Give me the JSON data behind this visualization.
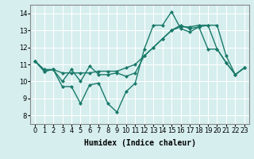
{
  "line1_x": [
    0,
    1,
    2,
    3,
    4,
    5,
    6,
    7,
    8,
    9,
    10,
    11,
    12,
    13,
    14,
    15,
    16,
    17,
    18,
    19,
    20,
    21,
    22,
    23
  ],
  "line1_y": [
    11.2,
    10.6,
    10.7,
    9.7,
    9.7,
    8.7,
    9.8,
    9.9,
    8.7,
    8.2,
    9.4,
    9.9,
    11.9,
    13.3,
    13.3,
    14.1,
    13.1,
    12.9,
    13.2,
    13.3,
    11.9,
    11.1,
    10.4,
    10.8
  ],
  "line2_x": [
    0,
    1,
    2,
    3,
    4,
    5,
    6,
    7,
    8,
    9,
    10,
    11,
    12,
    13,
    14,
    15,
    16,
    17,
    18,
    19,
    20,
    21,
    22,
    23
  ],
  "line2_y": [
    11.2,
    10.7,
    10.7,
    10.5,
    10.5,
    10.5,
    10.5,
    10.6,
    10.6,
    10.6,
    10.8,
    11.0,
    11.5,
    12.0,
    12.5,
    13.0,
    13.2,
    13.2,
    13.3,
    13.3,
    13.3,
    11.5,
    10.4,
    10.8
  ],
  "line3_x": [
    0,
    1,
    2,
    3,
    4,
    5,
    6,
    7,
    8,
    9,
    10,
    11,
    12,
    13,
    14,
    15,
    16,
    17,
    18,
    19,
    20,
    21,
    22,
    23
  ],
  "line3_y": [
    11.2,
    10.6,
    10.7,
    10.0,
    10.7,
    10.0,
    10.9,
    10.4,
    10.4,
    10.5,
    10.3,
    10.5,
    11.5,
    12.0,
    12.5,
    13.0,
    13.3,
    13.1,
    13.2,
    11.9,
    11.9,
    11.1,
    10.4,
    10.8
  ],
  "color": "#1a7a6a",
  "bg_color": "#d6eeee",
  "grid_color": "#ffffff",
  "xlabel": "Humidex (Indice chaleur)",
  "ylim": [
    7.5,
    14.5
  ],
  "xlim": [
    -0.5,
    23.5
  ],
  "yticks": [
    8,
    9,
    10,
    11,
    12,
    13,
    14
  ],
  "xticks": [
    0,
    1,
    2,
    3,
    4,
    5,
    6,
    7,
    8,
    9,
    10,
    11,
    12,
    13,
    14,
    15,
    16,
    17,
    18,
    19,
    20,
    21,
    22,
    23
  ],
  "marker": "D",
  "markersize": 2.5,
  "linewidth": 1.0,
  "xlabel_fontsize": 7,
  "tick_fontsize": 6
}
